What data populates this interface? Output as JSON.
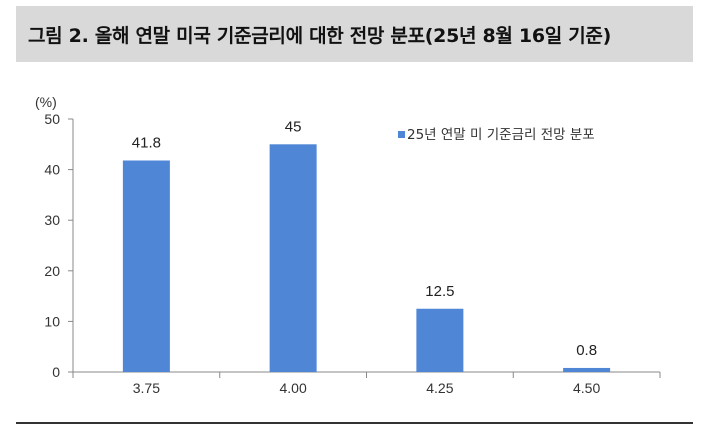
{
  "title": "그림 2. 올해 연말 미국 기준금리에 대한 전망 분포(25년 8월 16일 기준)",
  "chart_data": {
    "type": "bar",
    "unit_label": "(%)",
    "categories": [
      "3.75",
      "4.00",
      "4.25",
      "4.50"
    ],
    "series": [
      {
        "name": "25년 연말 미 기준금리 전망 분포",
        "values": [
          41.8,
          45,
          12.5,
          0.8
        ]
      }
    ],
    "value_labels": [
      "41.8",
      "45",
      "12.5",
      "0.8"
    ],
    "ylim": [
      0,
      50
    ],
    "yticks": [
      0,
      10,
      20,
      30,
      40,
      50
    ],
    "legend_position": "top-right",
    "grid": false,
    "bar_color": "#4f86d6"
  }
}
